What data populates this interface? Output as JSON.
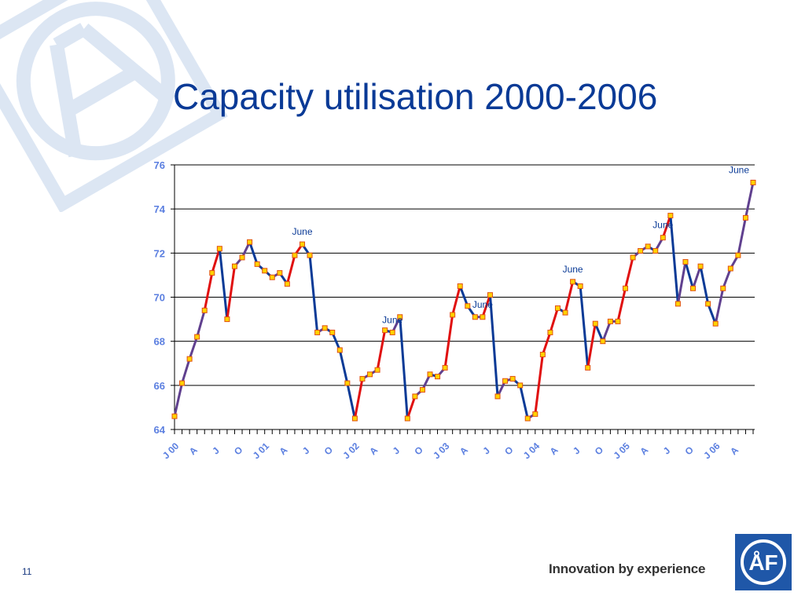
{
  "slide": {
    "title": "Capacity utilisation 2000-2006",
    "page_number": "11",
    "tagline": "Innovation by experience",
    "logo_text": "ÅF"
  },
  "colors": {
    "title": "#0a3a96",
    "axis_labels": "#5b7fe0",
    "line_blue": "#0a3a96",
    "line_purple": "#60408f",
    "line_red": "#e01010",
    "marker_fill": "#ffd200",
    "marker_stroke": "#e05010",
    "logo_blue": "#1f57a8",
    "watermark": "#dce6f3"
  },
  "chart_data": {
    "type": "line",
    "title": "",
    "xlabel": "",
    "ylabel": "",
    "ylim": [
      64,
      76
    ],
    "y_ticks": [
      64,
      66,
      68,
      70,
      72,
      74,
      76
    ],
    "grid": true,
    "x_tick_labels": [
      {
        "index": 0,
        "label": "J 00"
      },
      {
        "index": 3,
        "label": "A"
      },
      {
        "index": 6,
        "label": "J"
      },
      {
        "index": 9,
        "label": "O"
      },
      {
        "index": 12,
        "label": "J 01"
      },
      {
        "index": 15,
        "label": "A"
      },
      {
        "index": 18,
        "label": "J"
      },
      {
        "index": 21,
        "label": "O"
      },
      {
        "index": 24,
        "label": "J 02"
      },
      {
        "index": 27,
        "label": "A"
      },
      {
        "index": 30,
        "label": "J"
      },
      {
        "index": 33,
        "label": "O"
      },
      {
        "index": 36,
        "label": "J 03"
      },
      {
        "index": 39,
        "label": "A"
      },
      {
        "index": 42,
        "label": "J"
      },
      {
        "index": 45,
        "label": "O"
      },
      {
        "index": 48,
        "label": "J 04"
      },
      {
        "index": 51,
        "label": "A"
      },
      {
        "index": 54,
        "label": "J"
      },
      {
        "index": 57,
        "label": "O"
      },
      {
        "index": 60,
        "label": "J 05"
      },
      {
        "index": 63,
        "label": "A"
      },
      {
        "index": 66,
        "label": "J"
      },
      {
        "index": 69,
        "label": "O"
      },
      {
        "index": 72,
        "label": "J 06"
      },
      {
        "index": 75,
        "label": "A"
      }
    ],
    "series": [
      {
        "values": [
          64.6,
          66.1,
          67.2,
          68.2,
          69.4,
          71.1,
          72.2,
          69.0,
          71.4,
          71.8,
          72.5,
          71.5,
          71.2,
          70.9,
          71.1,
          70.6,
          71.9,
          72.4,
          71.9,
          68.4,
          68.6,
          68.4,
          67.6,
          66.1,
          64.5,
          66.3,
          66.5,
          66.7,
          68.5,
          68.4,
          69.1,
          64.5,
          65.5,
          65.8,
          66.5,
          66.4,
          66.8,
          69.2,
          70.5,
          69.6,
          69.1,
          69.1,
          70.1,
          65.5,
          66.2,
          66.3,
          66.0,
          64.5,
          64.7,
          67.4,
          68.4,
          69.5,
          69.3,
          70.7,
          70.5,
          66.8,
          68.8,
          68.0,
          68.9,
          68.9,
          70.4,
          71.8,
          72.1,
          72.3,
          72.1,
          72.7,
          73.7,
          69.7,
          71.6,
          70.4,
          71.4,
          69.7,
          68.8,
          70.4,
          71.3,
          71.9,
          73.6,
          75.2
        ]
      }
    ],
    "annotations": [
      {
        "text": "June",
        "x_index": 17,
        "y": 72.4
      },
      {
        "text": "June",
        "x_index": 29,
        "y": 68.4
      },
      {
        "text": "June",
        "x_index": 41,
        "y": 69.1
      },
      {
        "text": "June",
        "x_index": 53,
        "y": 70.7
      },
      {
        "text": "June",
        "x_index": 65,
        "y": 72.7
      },
      {
        "text": "June",
        "x_index": 77,
        "y": 75.2
      }
    ]
  }
}
